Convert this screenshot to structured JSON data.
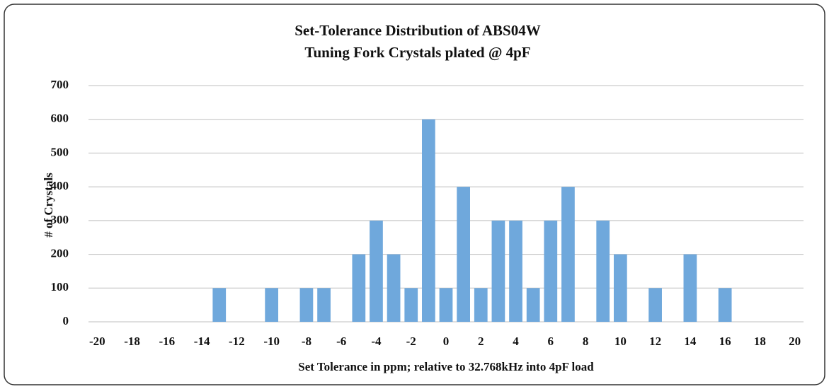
{
  "chart_data": {
    "type": "bar",
    "title": "Set-Tolerance Distribution of ABS04W",
    "subtitle": "Tuning Fork Crystals plated @ 4pF",
    "x_label": "Set Tolerance in ppm; relative to 32.768kHz into 4pF load",
    "y_label": "# of Crystals",
    "categories": [
      "-20",
      null,
      "-18",
      null,
      "-16",
      null,
      "-14",
      null,
      "-12",
      null,
      "-10",
      null,
      "-8",
      null,
      "-6",
      null,
      "-4",
      null,
      "-2",
      null,
      "0",
      null,
      "2",
      null,
      "4",
      null,
      "6",
      null,
      "8",
      null,
      "10",
      null,
      "12",
      null,
      "14",
      null,
      "16",
      null,
      "18",
      null,
      "20"
    ],
    "values": [
      0,
      0,
      0,
      0,
      0,
      0,
      0,
      100,
      0,
      0,
      100,
      0,
      100,
      100,
      0,
      200,
      300,
      200,
      100,
      600,
      100,
      400,
      100,
      300,
      300,
      100,
      300,
      400,
      0,
      300,
      200,
      0,
      100,
      0,
      200,
      0,
      100,
      0,
      0,
      0,
      0
    ],
    "color": "#6fa8dc",
    "ylim": [
      0,
      700
    ],
    "yticks": [
      0,
      100,
      200,
      300,
      400,
      500,
      600,
      700
    ],
    "grid": true
  }
}
